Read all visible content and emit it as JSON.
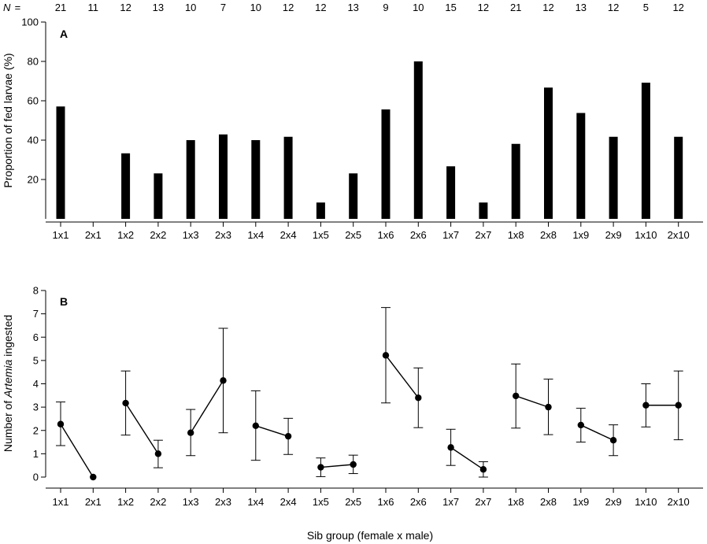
{
  "n_row": {
    "prefix": "N",
    "equals": " = ",
    "values": [
      21,
      11,
      12,
      13,
      10,
      7,
      10,
      12,
      12,
      13,
      9,
      10,
      15,
      12,
      21,
      12,
      13,
      12,
      5,
      12
    ]
  },
  "xlabel": "Sib group (female x male)",
  "chart_data": [
    {
      "panel": "A",
      "type": "bar",
      "ylabel": "Proportion of fed larvae (%)",
      "ylim": [
        0,
        100
      ],
      "yticks": [
        20,
        40,
        60,
        80,
        100
      ],
      "categories": [
        "1x1",
        "2x1",
        "1x2",
        "2x2",
        "1x3",
        "2x3",
        "1x4",
        "2x4",
        "1x5",
        "2x5",
        "1x6",
        "2x6",
        "1x7",
        "2x7",
        "1x8",
        "2x8",
        "1x9",
        "2x9",
        "1x10",
        "2x10"
      ],
      "values": [
        57.1,
        0,
        33.3,
        23.1,
        40,
        42.9,
        40,
        41.7,
        8.3,
        23.1,
        55.6,
        80,
        26.7,
        8.3,
        38.1,
        66.7,
        53.8,
        41.7,
        69.2,
        41.7
      ],
      "color": "#000000"
    },
    {
      "panel": "B",
      "type": "line",
      "ylabel_parts": [
        "Number of ",
        "Artemia",
        " ingested"
      ],
      "ylim": [
        0,
        8
      ],
      "yticks": [
        0,
        1,
        2,
        3,
        4,
        5,
        6,
        7,
        8
      ],
      "categories": [
        "1x1",
        "2x1",
        "1x2",
        "2x2",
        "1x3",
        "2x3",
        "1x4",
        "2x4",
        "1x5",
        "2x5",
        "1x6",
        "2x6",
        "1x7",
        "2x7",
        "1x8",
        "2x8",
        "1x9",
        "2x9",
        "1x10",
        "2x10"
      ],
      "values": [
        2.27,
        0,
        3.17,
        1.0,
        1.9,
        4.14,
        2.2,
        1.75,
        0.42,
        0.54,
        5.22,
        3.4,
        1.27,
        0.33,
        3.48,
        3.0,
        2.23,
        1.58,
        3.08,
        3.08
      ],
      "error_low": [
        1.35,
        0,
        1.8,
        0.4,
        0.92,
        1.9,
        0.72,
        0.97,
        0.02,
        0.15,
        3.18,
        2.12,
        0.5,
        0.0,
        2.1,
        1.82,
        1.5,
        0.92,
        2.15,
        1.6
      ],
      "error_high": [
        3.22,
        0,
        4.55,
        1.58,
        2.9,
        6.38,
        3.7,
        2.52,
        0.82,
        0.94,
        7.27,
        4.68,
        2.05,
        0.66,
        4.85,
        4.2,
        2.95,
        2.24,
        4.0,
        4.55
      ],
      "pairs": [
        [
          0,
          1
        ],
        [
          2,
          3
        ],
        [
          4,
          5
        ],
        [
          6,
          7
        ],
        [
          8,
          9
        ],
        [
          10,
          11
        ],
        [
          12,
          13
        ],
        [
          14,
          15
        ],
        [
          16,
          17
        ],
        [
          18,
          19
        ]
      ],
      "color": "#000000"
    }
  ]
}
